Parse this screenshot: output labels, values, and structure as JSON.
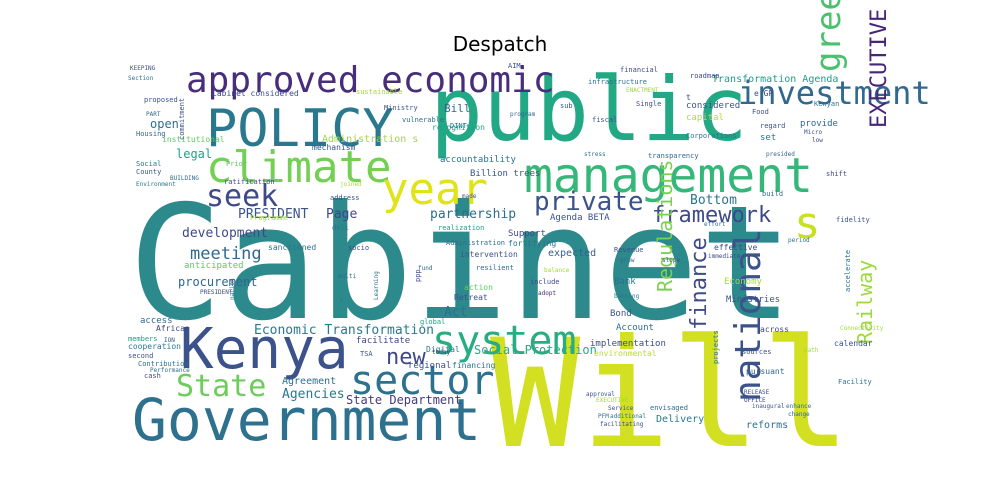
{
  "title": "Despatch",
  "words": [
    {
      "text": "Cabinet",
      "color": "#2c8a8c"
    },
    {
      "text": "Will",
      "color": "#d2e021"
    },
    {
      "text": "public",
      "color": "#22a884"
    },
    {
      "text": "Government",
      "color": "#2d718e"
    },
    {
      "text": "Kenya",
      "color": "#3b528b"
    },
    {
      "text": "management",
      "color": "#35b779"
    },
    {
      "text": "approved economic",
      "color": "#472d7b"
    },
    {
      "text": "POLICY",
      "color": "#2a788e"
    },
    {
      "text": "climate",
      "color": "#73d055"
    },
    {
      "text": "year",
      "color": "#dfe318"
    },
    {
      "text": "system",
      "color": "#27ad81"
    },
    {
      "text": "sector",
      "color": "#2c728e"
    },
    {
      "text": "State",
      "color": "#6ccd5a"
    },
    {
      "text": "national",
      "color": "#3b528b"
    },
    {
      "text": "investment",
      "color": "#31688e"
    },
    {
      "text": "green",
      "color": "#4ac16d"
    },
    {
      "text": "s",
      "color": "#c8e020"
    },
    {
      "text": "seek",
      "color": "#3e4a89"
    },
    {
      "text": "EXECUTIVE OFFICE",
      "color": "#482677"
    },
    {
      "text": "private",
      "color": "#3b528b"
    },
    {
      "text": "framework",
      "color": "#3e4989"
    },
    {
      "text": "Regulations",
      "color": "#7ad151"
    },
    {
      "text": "finance",
      "color": "#3e4a89"
    },
    {
      "text": "Railway",
      "color": "#9bd93c"
    },
    {
      "text": "new",
      "color": "#3f4788"
    },
    {
      "text": "Economic Transformation",
      "color": "#2a788e"
    },
    {
      "text": "PRESIDENT",
      "color": "#3b528b"
    },
    {
      "text": "Page",
      "color": "#414487"
    },
    {
      "text": "partnership",
      "color": "#2e6e8e"
    },
    {
      "text": "Bottom",
      "color": "#2c738e"
    },
    {
      "text": "development",
      "color": "#3f4889"
    },
    {
      "text": "meeting",
      "color": "#31688e"
    },
    {
      "text": "open",
      "color": "#2d708e"
    },
    {
      "text": "legal",
      "color": "#1fa088"
    },
    {
      "text": "Act",
      "color": "#2e6f8e"
    },
    {
      "text": "Agencies",
      "color": "#2a788e"
    },
    {
      "text": "procurement",
      "color": "#31668e"
    },
    {
      "text": "Agreement",
      "color": "#2c718e"
    },
    {
      "text": "State Department",
      "color": "#443a83"
    },
    {
      "text": "Social Protection",
      "color": "#27ad81"
    },
    {
      "text": "Delivery",
      "color": "#2a788e"
    },
    {
      "text": "reforms",
      "color": "#2d708e"
    },
    {
      "text": "Agenda BETA",
      "color": "#3b528b"
    },
    {
      "text": "Support",
      "color": "#3e4a89"
    },
    {
      "text": "expected",
      "color": "#34608d"
    },
    {
      "text": "Transformation Agenda",
      "color": "#1f9e89"
    },
    {
      "text": "Bill",
      "color": "#31688e"
    },
    {
      "text": "accountability",
      "color": "#2c728e"
    },
    {
      "text": "Billion trees",
      "color": "#3b528b"
    },
    {
      "text": "Administration s",
      "color": "#a2da37"
    },
    {
      "text": "recognition",
      "color": "#1fa187"
    },
    {
      "text": "mechanism",
      "color": "#39568c"
    },
    {
      "text": "anticipated",
      "color": "#5ec962"
    },
    {
      "text": "sanctioned",
      "color": "#2c728e"
    },
    {
      "text": "Economy",
      "color": "#9fda3a"
    },
    {
      "text": "Ministries",
      "color": "#3b528b"
    },
    {
      "text": "Bank",
      "color": "#2d708e"
    },
    {
      "text": "Bond",
      "color": "#3b528b"
    },
    {
      "text": "Account",
      "color": "#2e6e8e"
    },
    {
      "text": "implementation",
      "color": "#3e4a89"
    },
    {
      "text": "environmental",
      "color": "#b8de29"
    },
    {
      "text": "financing",
      "color": "#2c728e"
    },
    {
      "text": "regional",
      "color": "#3b528b"
    },
    {
      "text": "facilitate",
      "color": "#3f4889"
    },
    {
      "text": "access",
      "color": "#31688e"
    },
    {
      "text": "cooperation",
      "color": "#2a788e"
    },
    {
      "text": "members",
      "color": "#1fa088"
    },
    {
      "text": "second",
      "color": "#3b528b"
    },
    {
      "text": "cash",
      "color": "#3e4a89"
    },
    {
      "text": "Contribution",
      "color": "#2c728e"
    },
    {
      "text": "African",
      "color": "#414487"
    },
    {
      "text": "Retreat",
      "color": "#3b528b"
    },
    {
      "text": "Digital",
      "color": "#2a788e"
    },
    {
      "text": "global",
      "color": "#1fa088"
    },
    {
      "text": "adopt",
      "color": "#482878"
    },
    {
      "text": "action",
      "color": "#5ec962"
    },
    {
      "text": "include",
      "color": "#3e4a89"
    },
    {
      "text": "resilient",
      "color": "#31688e"
    },
    {
      "text": "intervention",
      "color": "#3b528b"
    },
    {
      "text": "Administration",
      "color": "#2d708e"
    },
    {
      "text": "fortifying",
      "color": "#2c728e"
    },
    {
      "text": "realization",
      "color": "#1fa088"
    },
    {
      "text": "Revenue",
      "color": "#3b528b"
    },
    {
      "text": "effective",
      "color": "#3e4a89"
    },
    {
      "text": "banking",
      "color": "#2a788e"
    },
    {
      "text": "pursuant",
      "color": "#31688e"
    },
    {
      "text": "sources",
      "color": "#3b528b"
    },
    {
      "text": "projects",
      "color": "#2c728e"
    },
    {
      "text": "across",
      "color": "#414487"
    },
    {
      "text": "calendar",
      "color": "#3b528b"
    },
    {
      "text": "Facility",
      "color": "#2c728e"
    },
    {
      "text": "Connectivity",
      "color": "#9fda3a"
    },
    {
      "text": "accelerate",
      "color": "#2d708e"
    },
    {
      "text": "fidelity",
      "color": "#3b528b"
    },
    {
      "text": "build",
      "color": "#2c728e"
    },
    {
      "text": "shift",
      "color": "#3e4a89"
    },
    {
      "text": "provide",
      "color": "#31688e"
    },
    {
      "text": "regard",
      "color": "#3b528b"
    },
    {
      "text": "set",
      "color": "#2a788e"
    },
    {
      "text": "low",
      "color": "#414487"
    },
    {
      "text": "Kenyan",
      "color": "#2c728e"
    },
    {
      "text": "Food",
      "color": "#3b528b"
    },
    {
      "text": "considered",
      "color": "#3b528b"
    },
    {
      "text": "capital",
      "color": "#b5de2b"
    },
    {
      "text": "Corporations",
      "color": "#2c728e"
    },
    {
      "text": "Single",
      "color": "#3e4a89"
    },
    {
      "text": "transparency",
      "color": "#31688e"
    },
    {
      "text": "fiscal",
      "color": "#3b528b"
    },
    {
      "text": "infrastructure",
      "color": "#2c728e"
    },
    {
      "text": "financial",
      "color": "#3e4a89"
    },
    {
      "text": "program",
      "color": "#31688e"
    },
    {
      "text": "Ministry",
      "color": "#3b528b"
    },
    {
      "text": "vulnerable",
      "color": "#2c728e"
    },
    {
      "text": "sustainable",
      "color": "#a2da37"
    },
    {
      "text": "institutional",
      "color": "#5ec962"
    },
    {
      "text": "commitment",
      "color": "#3b528b"
    },
    {
      "text": "Cabinet considered",
      "color": "#3e4a89"
    },
    {
      "text": "Housing",
      "color": "#31688e"
    },
    {
      "text": "Social",
      "color": "#2c728e"
    },
    {
      "text": "County",
      "color": "#3b528b"
    },
    {
      "text": "Environment",
      "color": "#2a788e"
    },
    {
      "text": "ratification",
      "color": "#3e4a89"
    },
    {
      "text": "BUILDING",
      "color": "#31688e"
    },
    {
      "text": "proposed",
      "color": "#3b528b"
    },
    {
      "text": "Section",
      "color": "#2c728e"
    },
    {
      "text": "KEEPING",
      "color": "#3e4a89"
    },
    {
      "text": "PART",
      "color": "#31688e"
    },
    {
      "text": "address",
      "color": "#3b528b"
    },
    {
      "text": "deli",
      "color": "#2c728e"
    },
    {
      "text": "socio",
      "color": "#3e4a89"
    },
    {
      "text": "Prior",
      "color": "#5ec962"
    },
    {
      "text": "Programme",
      "color": "#a2da37"
    },
    {
      "text": "ION",
      "color": "#3b528b"
    },
    {
      "text": "nation",
      "color": "#2c728e"
    },
    {
      "text": "PRESIDENT",
      "color": "#3e4a89"
    },
    {
      "text": "multi",
      "color": "#31688e"
    },
    {
      "text": "Performance",
      "color": "#2c728e"
    },
    {
      "text": "TSA",
      "color": "#3b528b"
    },
    {
      "text": "today",
      "color": "#3e4a89"
    },
    {
      "text": "Learning",
      "color": "#2c728e"
    },
    {
      "text": "fund",
      "color": "#31688e"
    },
    {
      "text": "Service",
      "color": "#3b528b"
    },
    {
      "text": "additional",
      "color": "#2c728e"
    },
    {
      "text": "facilitating",
      "color": "#3e4a89"
    },
    {
      "text": "envisaged",
      "color": "#31688e"
    },
    {
      "text": "approval",
      "color": "#3b528b"
    },
    {
      "text": "EXECUTIVE",
      "color": "#a2da37"
    },
    {
      "text": "PFM",
      "color": "#2c728e"
    },
    {
      "text": "RELEASE",
      "color": "#3b528b"
    },
    {
      "text": "OFFICE",
      "color": "#3e4a89"
    },
    {
      "text": "change",
      "color": "#31688e"
    },
    {
      "text": "enhance",
      "color": "#2c728e"
    },
    {
      "text": "inaugural",
      "color": "#3b528b"
    },
    {
      "text": "path",
      "color": "#9fda3a"
    },
    {
      "text": "grow",
      "color": "#31688e"
    },
    {
      "text": "balance",
      "color": "#a2da37"
    },
    {
      "text": "sub",
      "color": "#3b528b"
    },
    {
      "text": "stress",
      "color": "#2c728e"
    },
    {
      "text": "roadmap",
      "color": "#3e4a89"
    },
    {
      "text": "ENACTMENT",
      "color": "#a2da37"
    },
    {
      "text": "AIM",
      "color": "#3b528b"
    },
    {
      "text": "DINT",
      "color": "#2c728e"
    },
    {
      "text": "e GP",
      "color": "#3e4a89"
    },
    {
      "text": "t",
      "color": "#3b528b"
    },
    {
      "text": "c",
      "color": "#2c728e"
    },
    {
      "text": "ppp",
      "color": "#3e4a89"
    },
    {
      "text": "presided",
      "color": "#31688e"
    },
    {
      "text": "Micro",
      "color": "#3b528b"
    },
    {
      "text": "period",
      "color": "#2c728e"
    },
    {
      "text": "immediate",
      "color": "#3e4a89"
    },
    {
      "text": "effort",
      "color": "#31688e"
    },
    {
      "text": "slope",
      "color": "#3b528b"
    },
    {
      "text": "joined",
      "color": "#a2da37"
    },
    {
      "text": "made",
      "color": "#3b528b"
    }
  ]
}
